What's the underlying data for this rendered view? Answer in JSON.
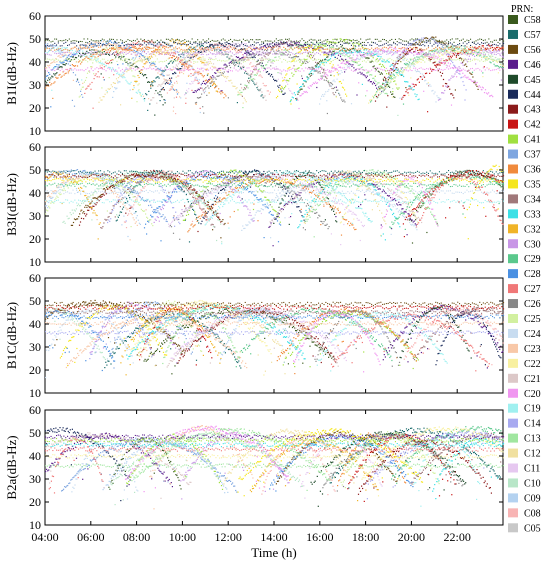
{
  "chart_data": {
    "type": "scatter",
    "xlabel": "Time (h)",
    "x_ticks": [
      "04:00",
      "06:00",
      "08:00",
      "10:00",
      "12:00",
      "14:00",
      "16:00",
      "18:00",
      "20:00",
      "22:00"
    ],
    "x_range": [
      "04:00",
      "24:00"
    ],
    "ylim": [
      10,
      60
    ],
    "y_ticks": [
      10,
      20,
      30,
      40,
      50,
      60
    ],
    "panels": [
      {
        "ylabel": "B1I(dB-Hz)"
      },
      {
        "ylabel": "B3I(dB-Hz)"
      },
      {
        "ylabel": "B1C(dB-Hz)"
      },
      {
        "ylabel": "B2a(dB-Hz)"
      }
    ],
    "legend": {
      "title": "PRN:",
      "placement": "right",
      "entries": [
        {
          "name": "C58",
          "color": "#3a5a1e"
        },
        {
          "name": "C57",
          "color": "#1a6b6b"
        },
        {
          "name": "C56",
          "color": "#6b4a10"
        },
        {
          "name": "C46",
          "color": "#5a1e8c"
        },
        {
          "name": "C45",
          "color": "#1e4a2a"
        },
        {
          "name": "C44",
          "color": "#1a2a5a"
        },
        {
          "name": "C43",
          "color": "#8b1a1a"
        },
        {
          "name": "C42",
          "color": "#c81414"
        },
        {
          "name": "C41",
          "color": "#a0e040"
        },
        {
          "name": "C37",
          "color": "#7ea6e0"
        },
        {
          "name": "C36",
          "color": "#f08a3c"
        },
        {
          "name": "C35",
          "color": "#f5e61e"
        },
        {
          "name": "C34",
          "color": "#a0787a"
        },
        {
          "name": "C33",
          "color": "#3ce0e6"
        },
        {
          "name": "C32",
          "color": "#f0b428"
        },
        {
          "name": "C30",
          "color": "#c896e6"
        },
        {
          "name": "C29",
          "color": "#5ac88c"
        },
        {
          "name": "C28",
          "color": "#4a90e2"
        },
        {
          "name": "C27",
          "color": "#f07878"
        },
        {
          "name": "C26",
          "color": "#888888"
        },
        {
          "name": "C25",
          "color": "#d2f0a0"
        },
        {
          "name": "C24",
          "color": "#c8dcf0"
        },
        {
          "name": "C23",
          "color": "#f8c8a8"
        },
        {
          "name": "C22",
          "color": "#f8f0a0"
        },
        {
          "name": "C21",
          "color": "#dcc8c8"
        },
        {
          "name": "C20",
          "color": "#f096f0"
        },
        {
          "name": "C19",
          "color": "#a0f0f0"
        },
        {
          "name": "C14",
          "color": "#a8aaf0"
        },
        {
          "name": "C13",
          "color": "#a0e6a0"
        },
        {
          "name": "C12",
          "color": "#f0e0a0"
        },
        {
          "name": "C11",
          "color": "#e6c8f0"
        },
        {
          "name": "C10",
          "color": "#b8e6c8"
        },
        {
          "name": "C09",
          "color": "#b4d2f0"
        },
        {
          "name": "C08",
          "color": "#f8b4b4"
        },
        {
          "name": "C05",
          "color": "#c8c8c8"
        }
      ]
    }
  }
}
